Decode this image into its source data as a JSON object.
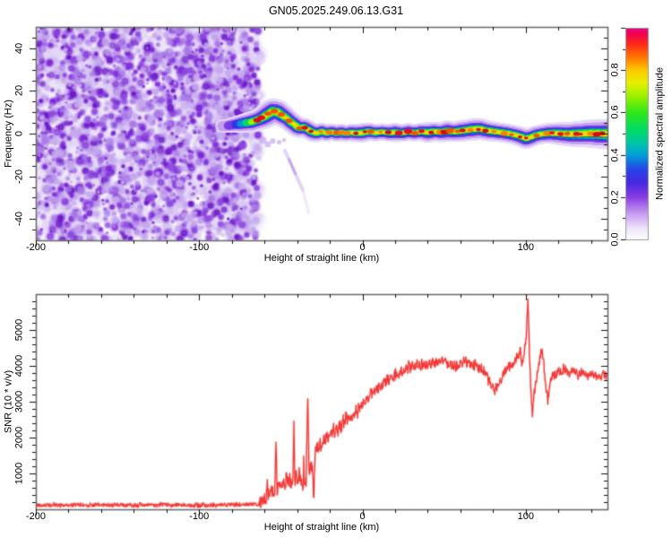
{
  "title": "GN05.2025.249.06.13.G31",
  "chart_data": [
    {
      "type": "heatmap",
      "name": "doppler-spectrogram",
      "xlabel": "Height of straight line (km)",
      "ylabel": "Frequency (Hz)",
      "xlim": [
        -200,
        150
      ],
      "ylim": [
        -50,
        50
      ],
      "x_major_ticks": [
        -200,
        -100,
        0,
        100
      ],
      "x_tick_labels": [
        "-200",
        "-100",
        "0",
        "100"
      ],
      "x_minor_step": 20,
      "y_major_ticks": [
        -40,
        -20,
        0,
        20,
        40
      ],
      "y_tick_labels": [
        "-40",
        "-20",
        "0",
        "20",
        "40"
      ],
      "y_minor_step": 5,
      "noise_region": {
        "x_range": [
          -200,
          -65
        ],
        "description": "speckled purple background noise filling full frequency range",
        "pale_colors": [
          "#f1eafb",
          "#e3d5f7",
          "#d2bdf1"
        ],
        "dark_colors": [
          "#c5a7ee",
          "#a97ae8",
          "#8c46e0",
          "#7a22d8",
          "#6a14c8"
        ]
      },
      "ridge": {
        "description": "echo trace: [height km, center frequency Hz, normalized amplitude, half-width Hz]",
        "points": [
          [
            -84,
            3.5,
            0.22,
            3
          ],
          [
            -80,
            4,
            0.3,
            3.5
          ],
          [
            -76,
            4.5,
            0.5,
            4
          ],
          [
            -72,
            5,
            0.62,
            4.5
          ],
          [
            -68,
            5.5,
            0.78,
            5
          ],
          [
            -64,
            6.5,
            0.9,
            5
          ],
          [
            -61,
            7.5,
            0.95,
            5.5
          ],
          [
            -58,
            9,
            1,
            6
          ],
          [
            -55,
            10.5,
            1,
            6
          ],
          [
            -52,
            10,
            1,
            6
          ],
          [
            -49,
            8.5,
            0.97,
            5.5
          ],
          [
            -46,
            7,
            0.93,
            5
          ],
          [
            -44,
            5.5,
            0.92,
            5
          ],
          [
            -42,
            4.5,
            0.92,
            5
          ],
          [
            -40,
            3.2,
            0.95,
            5
          ],
          [
            -38,
            2.6,
            0.92,
            4.5
          ],
          [
            -36,
            3,
            0.9,
            4.5
          ],
          [
            -34,
            2.2,
            0.92,
            4.5
          ],
          [
            -31,
            0.8,
            0.95,
            4.5
          ],
          [
            -28,
            0.2,
            0.92,
            4.2
          ],
          [
            -25,
            1,
            0.9,
            4.2
          ],
          [
            -22,
            0.2,
            0.92,
            4
          ],
          [
            -19,
            0.8,
            0.9,
            4
          ],
          [
            -16,
            0.2,
            0.9,
            4
          ],
          [
            -13,
            0.6,
            0.9,
            4
          ],
          [
            -10,
            0.1,
            0.9,
            4
          ],
          [
            -7,
            0.6,
            0.89,
            4
          ],
          [
            -4,
            0.2,
            0.9,
            4.2
          ],
          [
            0,
            0.4,
            0.92,
            4.5
          ],
          [
            4,
            1,
            0.89,
            4.2
          ],
          [
            8,
            0.4,
            0.9,
            4
          ],
          [
            12,
            0.8,
            0.89,
            4
          ],
          [
            16,
            0.3,
            0.9,
            4
          ],
          [
            20,
            0.6,
            0.88,
            4.5
          ],
          [
            24,
            0.2,
            0.89,
            4
          ],
          [
            28,
            0.8,
            0.9,
            4.2
          ],
          [
            32,
            0.4,
            0.89,
            4
          ],
          [
            36,
            0.9,
            0.9,
            4.2
          ],
          [
            40,
            0.5,
            0.9,
            4.8
          ],
          [
            44,
            1,
            0.89,
            4.5
          ],
          [
            48,
            0.6,
            0.9,
            4.5
          ],
          [
            52,
            1.2,
            0.89,
            5
          ],
          [
            56,
            0.8,
            0.9,
            4.5
          ],
          [
            60,
            1.2,
            0.89,
            5
          ],
          [
            64,
            1.6,
            0.9,
            5
          ],
          [
            68,
            2,
            0.9,
            5.2
          ],
          [
            72,
            2.2,
            0.89,
            5
          ],
          [
            76,
            1.4,
            0.89,
            4.8
          ],
          [
            80,
            1,
            0.9,
            4.6
          ],
          [
            84,
            0.6,
            0.89,
            4.5
          ],
          [
            88,
            0.2,
            0.9,
            4.5
          ],
          [
            92,
            -0.4,
            0.9,
            4.5
          ],
          [
            96,
            -1.2,
            0.92,
            4.6
          ],
          [
            100,
            -2.4,
            0.95,
            4.8
          ],
          [
            103,
            -1.8,
            0.92,
            4.6
          ],
          [
            106,
            -0.8,
            0.9,
            4.5
          ],
          [
            110,
            -0.2,
            0.89,
            4.5
          ],
          [
            115,
            0.2,
            0.88,
            4.8
          ],
          [
            120,
            0,
            0.89,
            5.2
          ],
          [
            126,
            -0.3,
            0.88,
            5.6
          ],
          [
            132,
            -0.2,
            0.88,
            6
          ],
          [
            140,
            0,
            0.87,
            6.5
          ],
          [
            150,
            -0.2,
            0.87,
            7
          ]
        ],
        "layer_colors": [
          {
            "c": "#e6daf8",
            "s": 1.0,
            "t": 0.04
          },
          {
            "c": "#c4a0f0",
            "s": 0.78,
            "t": 0.12
          },
          {
            "c": "#7b3be8",
            "s": 0.58,
            "t": 0.25
          },
          {
            "c": "#2e38e8",
            "s": 0.45,
            "t": 0.38
          },
          {
            "c": "#0096dc",
            "s": 0.36,
            "t": 0.52
          },
          {
            "c": "#00dc5a",
            "s": 0.28,
            "t": 0.64
          },
          {
            "c": "#a0ee00",
            "s": 0.2,
            "t": 0.76
          },
          {
            "c": "#f5dc00",
            "s": 0.14,
            "t": 0.86
          }
        ],
        "core_dot_colors": [
          "#e80028",
          "#f05000",
          "#d40018",
          "#ff7800"
        ],
        "streaks": [
          {
            "x0": -47.5,
            "f0": -8,
            "x1": -36.5,
            "f1": -26.5,
            "color": "#d9c6f5",
            "w": 4,
            "alpha": 0.75
          },
          {
            "x0": -45,
            "f0": -12,
            "x1": -41,
            "f1": -19,
            "color": "#b591ea",
            "w": 2.5,
            "alpha": 0.7
          },
          {
            "x0": -36,
            "f0": -28,
            "x1": -33,
            "f1": -37,
            "color": "#e2d4f6",
            "w": 3,
            "alpha": 0.5
          }
        ]
      },
      "colorbar": {
        "label": "Normalized spectral amplitude",
        "ticks": [
          0.0,
          0.2,
          0.4,
          0.6,
          0.8
        ],
        "tick_labels": [
          "0.0",
          "0.2",
          "0.4",
          "0.6",
          "0.8"
        ],
        "range": [
          0,
          1
        ],
        "stops": [
          [
            0.0,
            "#ffffff"
          ],
          [
            0.05,
            "#efe6fa"
          ],
          [
            0.12,
            "#c79ef0"
          ],
          [
            0.2,
            "#8a3ce4"
          ],
          [
            0.27,
            "#4428e0"
          ],
          [
            0.33,
            "#2744e8"
          ],
          [
            0.4,
            "#00a0d8"
          ],
          [
            0.46,
            "#00c8a0"
          ],
          [
            0.52,
            "#00dc64"
          ],
          [
            0.6,
            "#30e818"
          ],
          [
            0.68,
            "#a0f000"
          ],
          [
            0.74,
            "#e8f000"
          ],
          [
            0.8,
            "#ffc800"
          ],
          [
            0.86,
            "#ff7800"
          ],
          [
            0.92,
            "#ff2d18"
          ],
          [
            0.97,
            "#f50050"
          ],
          [
            1.0,
            "#e6007e"
          ]
        ]
      }
    },
    {
      "type": "line",
      "name": "snr-profile",
      "xlabel": "Height of straight line (km)",
      "ylabel": "SNR (10 * v/v)",
      "color": "#f23838",
      "halo_color": "rgba(250,130,120,0.45)",
      "xlim": [
        -200,
        150
      ],
      "ylim": [
        0,
        6000
      ],
      "x_major_ticks": [
        -200,
        -100,
        0,
        100
      ],
      "x_tick_labels": [
        "-200",
        "-100",
        "0",
        "100"
      ],
      "x_minor_step": 20,
      "y_major_ticks": [
        1000,
        2000,
        3000,
        4000,
        5000
      ],
      "y_tick_labels": [
        "1000",
        "2000",
        "3000",
        "4000",
        "5000"
      ],
      "y_minor_step": 200,
      "base_points": [
        [
          -200,
          120
        ],
        [
          -180,
          118
        ],
        [
          -160,
          122
        ],
        [
          -140,
          118
        ],
        [
          -120,
          121
        ],
        [
          -100,
          118
        ],
        [
          -90,
          120
        ],
        [
          -80,
          124
        ],
        [
          -72,
          128
        ],
        [
          -66,
          135
        ],
        [
          -63,
          150
        ],
        [
          -61,
          220
        ],
        [
          -59.5,
          260
        ],
        [
          -59,
          250
        ],
        [
          -58.4,
          850
        ],
        [
          -57.8,
          350
        ],
        [
          -57,
          420
        ],
        [
          -56,
          520
        ],
        [
          -55,
          480
        ],
        [
          -54.2,
          420
        ],
        [
          -53.8,
          380
        ],
        [
          -53,
          1900
        ],
        [
          -52.3,
          520
        ],
        [
          -51.5,
          680
        ],
        [
          -50.5,
          760
        ],
        [
          -49.5,
          620
        ],
        [
          -48.5,
          820
        ],
        [
          -47.5,
          560
        ],
        [
          -46.5,
          900
        ],
        [
          -45.5,
          700
        ],
        [
          -44.5,
          850
        ],
        [
          -43.5,
          640
        ],
        [
          -42.6,
          700
        ],
        [
          -42,
          2350
        ],
        [
          -41.4,
          750
        ],
        [
          -40.5,
          980
        ],
        [
          -39.5,
          850
        ],
        [
          -38.5,
          1050
        ],
        [
          -37.5,
          800
        ],
        [
          -36.3,
          600
        ],
        [
          -36,
          1500
        ],
        [
          -35.6,
          650
        ],
        [
          -34.5,
          800
        ],
        [
          -33.5,
          3200
        ],
        [
          -32.8,
          950
        ],
        [
          -32,
          1100
        ],
        [
          -31,
          1250
        ],
        [
          -30.5,
          1000
        ],
        [
          -29.8,
          280
        ],
        [
          -29,
          1500
        ],
        [
          -28,
          1750
        ],
        [
          -27,
          1600
        ],
        [
          -26,
          1850
        ],
        [
          -25,
          1700
        ],
        [
          -24,
          2000
        ],
        [
          -23,
          1850
        ],
        [
          -22,
          2050
        ],
        [
          -21,
          1950
        ],
        [
          -20,
          2150
        ],
        [
          -19,
          2050
        ],
        [
          -18,
          2250
        ],
        [
          -17,
          2150
        ],
        [
          -16,
          2300
        ],
        [
          -15,
          2200
        ],
        [
          -14,
          2400
        ],
        [
          -13,
          2300
        ],
        [
          -12,
          2500
        ],
        [
          -11,
          2400
        ],
        [
          -10,
          2600
        ],
        [
          -9,
          2500
        ],
        [
          -8,
          2650
        ],
        [
          -7,
          2550
        ],
        [
          -6,
          2700
        ],
        [
          -5,
          2600
        ],
        [
          -4,
          2750
        ],
        [
          -3,
          2700
        ],
        [
          -2,
          2850
        ],
        [
          -1,
          2800
        ],
        [
          0,
          2950
        ],
        [
          2,
          3050
        ],
        [
          4,
          3150
        ],
        [
          6,
          3250
        ],
        [
          8,
          3300
        ],
        [
          10,
          3400
        ],
        [
          12,
          3450
        ],
        [
          14,
          3550
        ],
        [
          16,
          3600
        ],
        [
          18,
          3700
        ],
        [
          20,
          3750
        ],
        [
          22,
          3800
        ],
        [
          24,
          3850
        ],
        [
          26,
          3900
        ],
        [
          28,
          3950
        ],
        [
          30,
          4000
        ],
        [
          34,
          4050
        ],
        [
          38,
          4000
        ],
        [
          42,
          4100
        ],
        [
          46,
          4050
        ],
        [
          50,
          4150
        ],
        [
          54,
          4050
        ],
        [
          58,
          4000
        ],
        [
          62,
          4100
        ],
        [
          66,
          4050
        ],
        [
          70,
          4000
        ],
        [
          74,
          3900
        ],
        [
          77,
          3600
        ],
        [
          79,
          3450
        ],
        [
          81,
          3350
        ],
        [
          83,
          3500
        ],
        [
          85,
          3650
        ],
        [
          87,
          3850
        ],
        [
          89,
          3950
        ],
        [
          91,
          4050
        ],
        [
          93,
          4150
        ],
        [
          95,
          4250
        ],
        [
          96.5,
          4450
        ],
        [
          97.5,
          4050
        ],
        [
          99,
          4350
        ],
        [
          100.3,
          4800
        ],
        [
          101.3,
          5900
        ],
        [
          102.3,
          4200
        ],
        [
          103.2,
          3200
        ],
        [
          104,
          2600
        ],
        [
          105,
          3250
        ],
        [
          106.5,
          3600
        ],
        [
          108,
          4050
        ],
        [
          109.5,
          4450
        ],
        [
          110.8,
          4200
        ],
        [
          112,
          3500
        ],
        [
          113.5,
          3050
        ],
        [
          115,
          3550
        ],
        [
          116.5,
          3800
        ],
        [
          118,
          3700
        ],
        [
          120,
          3850
        ],
        [
          123,
          3900
        ],
        [
          126,
          3800
        ],
        [
          129,
          3850
        ],
        [
          132,
          3750
        ],
        [
          135,
          3850
        ],
        [
          138,
          3700
        ],
        [
          141,
          3800
        ],
        [
          144,
          3650
        ],
        [
          147,
          3750
        ],
        [
          150,
          3700
        ]
      ],
      "noise_segments": [
        [
          -200,
          -63,
          70
        ],
        [
          -63,
          -25,
          240
        ],
        [
          -25,
          30,
          200
        ],
        [
          30,
          95,
          180
        ],
        [
          95,
          112,
          150
        ],
        [
          112,
          150,
          170
        ]
      ]
    }
  ]
}
